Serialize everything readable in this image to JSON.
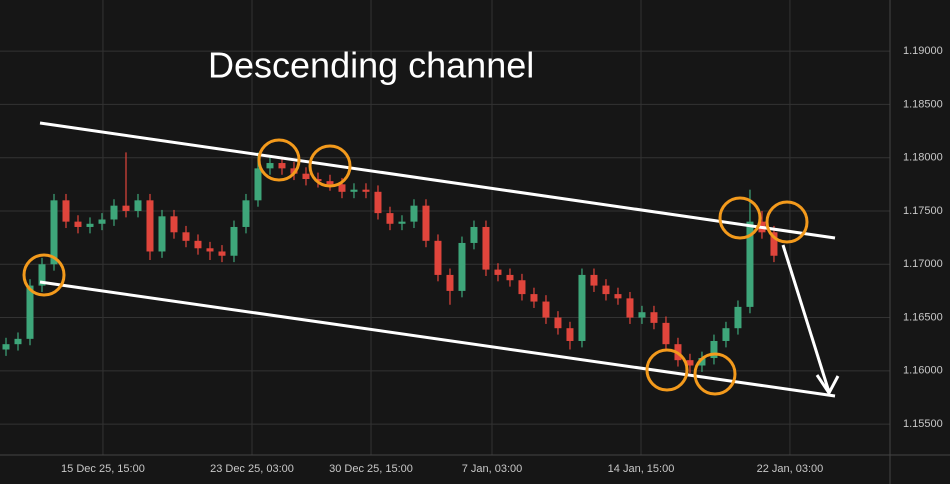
{
  "chart_data": {
    "type": "candlestick",
    "title": "Descending channel",
    "up_color": "#3ea67a",
    "down_color": "#e0453c",
    "grid": true,
    "xlim": [
      -0.5,
      73.67
    ],
    "xticks": [
      {
        "value": 8.08,
        "label": "15 Dec 25, 15:00"
      },
      {
        "value": 20.5,
        "label": "23 Dec 25, 03:00"
      },
      {
        "value": 30.42,
        "label": "30 Dec 25, 15:00"
      },
      {
        "value": 40.5,
        "label": "7 Jan, 03:00"
      },
      {
        "value": 52.92,
        "label": "14 Jan, 15:00"
      },
      {
        "value": 65.33,
        "label": "22 Jan, 03:00"
      }
    ],
    "ylim": [
      1.1521,
      1.1948
    ],
    "yticks": [
      {
        "value": 1.155,
        "label": "1.15500"
      },
      {
        "value": 1.16,
        "label": "1.16000"
      },
      {
        "value": 1.165,
        "label": "1.16500"
      },
      {
        "value": 1.17,
        "label": "1.17000"
      },
      {
        "value": 1.175,
        "label": "1.17500"
      },
      {
        "value": 1.18,
        "label": "1.18000"
      },
      {
        "value": 1.185,
        "label": "1.18500"
      },
      {
        "value": 1.19,
        "label": "1.19000"
      }
    ],
    "open": [
      1.162,
      1.1625,
      1.163,
      1.168,
      1.17,
      1.176,
      1.174,
      1.1735,
      1.1738,
      1.1742,
      1.1755,
      1.175,
      1.176,
      1.1712,
      1.1745,
      1.173,
      1.1722,
      1.1715,
      1.1712,
      1.1708,
      1.1735,
      1.176,
      1.179,
      1.1795,
      1.179,
      1.1785,
      1.178,
      1.1778,
      1.1775,
      1.1768,
      1.177,
      1.1768,
      1.1748,
      1.1738,
      1.174,
      1.1755,
      1.1722,
      1.169,
      1.1675,
      1.172,
      1.1735,
      1.1695,
      1.169,
      1.1685,
      1.1672,
      1.1665,
      1.165,
      1.164,
      1.1628,
      1.169,
      1.168,
      1.1672,
      1.1668,
      1.165,
      1.1655,
      1.1645,
      1.1625,
      1.161,
      1.1605,
      1.1612,
      1.1628,
      1.164,
      1.166,
      1.174,
      1.173
    ],
    "high": [
      1.1631,
      1.1636,
      1.1686,
      1.1706,
      1.1766,
      1.1766,
      1.1746,
      1.1744,
      1.1748,
      1.1761,
      1.1805,
      1.1766,
      1.1766,
      1.1751,
      1.1751,
      1.1736,
      1.1728,
      1.1721,
      1.1718,
      1.1741,
      1.1766,
      1.1805,
      1.1801,
      1.1801,
      1.1796,
      1.1791,
      1.1786,
      1.1784,
      1.1781,
      1.1776,
      1.1776,
      1.1774,
      1.1754,
      1.1746,
      1.1761,
      1.1761,
      1.1728,
      1.1696,
      1.1726,
      1.1741,
      1.1741,
      1.1701,
      1.1696,
      1.1691,
      1.1678,
      1.1671,
      1.1656,
      1.1646,
      1.1696,
      1.1696,
      1.1686,
      1.1678,
      1.1674,
      1.1661,
      1.1661,
      1.1651,
      1.1631,
      1.1616,
      1.1618,
      1.1634,
      1.1646,
      1.1666,
      1.177,
      1.175,
      1.1736
    ],
    "low": [
      1.1614,
      1.1619,
      1.1624,
      1.1674,
      1.1694,
      1.1734,
      1.1729,
      1.1729,
      1.1732,
      1.1736,
      1.1744,
      1.1744,
      1.1704,
      1.1706,
      1.1724,
      1.1716,
      1.1709,
      1.1704,
      1.1702,
      1.1702,
      1.1729,
      1.1754,
      1.1784,
      1.1784,
      1.1779,
      1.1774,
      1.1772,
      1.1769,
      1.1762,
      1.1762,
      1.1762,
      1.1742,
      1.1732,
      1.1732,
      1.1734,
      1.1716,
      1.1684,
      1.1662,
      1.1669,
      1.1714,
      1.1689,
      1.1684,
      1.1679,
      1.1666,
      1.1659,
      1.1644,
      1.1634,
      1.162,
      1.1622,
      1.1674,
      1.1666,
      1.1662,
      1.1644,
      1.1644,
      1.1639,
      1.1619,
      1.1604,
      1.1598,
      1.1599,
      1.1606,
      1.1622,
      1.1634,
      1.1654,
      1.1724,
      1.1702
    ],
    "close": [
      1.1625,
      1.163,
      1.168,
      1.17,
      1.176,
      1.174,
      1.1735,
      1.1738,
      1.1742,
      1.1755,
      1.175,
      1.176,
      1.1712,
      1.1745,
      1.173,
      1.1722,
      1.1715,
      1.1712,
      1.1708,
      1.1735,
      1.176,
      1.179,
      1.1795,
      1.179,
      1.1785,
      1.178,
      1.1778,
      1.1775,
      1.1768,
      1.177,
      1.1768,
      1.1748,
      1.1738,
      1.174,
      1.1755,
      1.1722,
      1.169,
      1.1675,
      1.172,
      1.1735,
      1.1695,
      1.169,
      1.1685,
      1.1672,
      1.1665,
      1.165,
      1.164,
      1.1628,
      1.169,
      1.168,
      1.1672,
      1.1668,
      1.165,
      1.1655,
      1.1645,
      1.1625,
      1.161,
      1.1605,
      1.1612,
      1.1628,
      1.164,
      1.166,
      1.174,
      1.173,
      1.1708
    ]
  }
}
